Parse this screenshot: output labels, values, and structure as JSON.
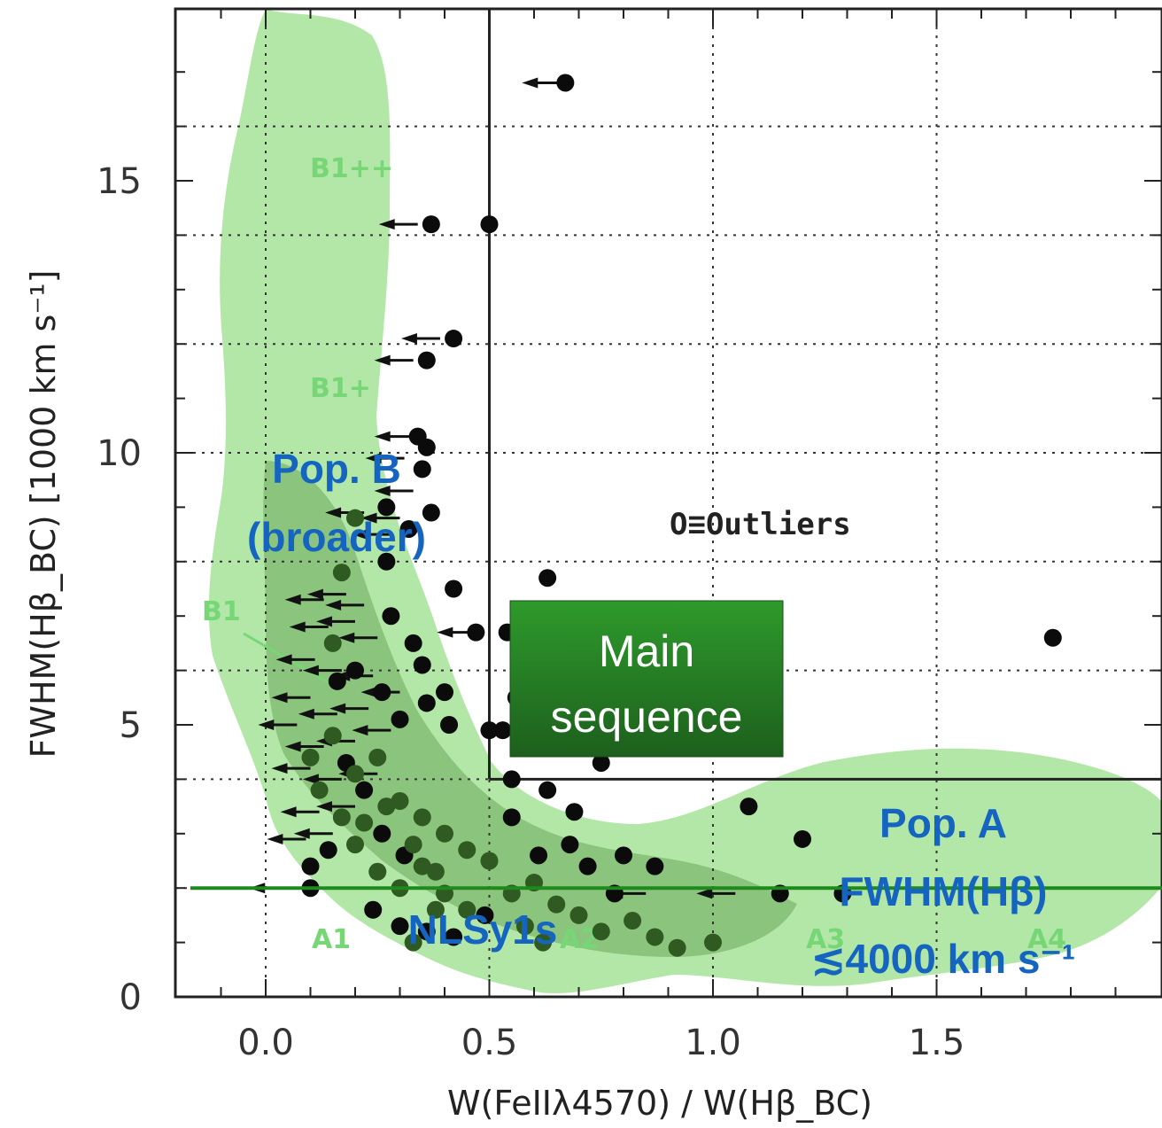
{
  "chart_data": {
    "type": "scatter",
    "xlabel": "W(FeIIλ4570) / W(Hβ_BC)",
    "ylabel": "FWHM(Hβ_BC) [1000 km s⁻¹]",
    "xlim": [
      -0.2,
      2.0
    ],
    "ylim": [
      0,
      18
    ],
    "x_ticks": [
      "0.0",
      "0.5",
      "1.0",
      "1.5"
    ],
    "y_ticks": [
      "0",
      "5",
      "10",
      "15"
    ],
    "grid": "dotted, x every 0.5, y every 2",
    "main_sequence_boundaries": {
      "x": 0.5,
      "y": 4
    },
    "zone_labels": [
      "B1++",
      "B1+",
      "B1",
      "A1",
      "A2",
      "A3",
      "A4"
    ],
    "annotations": {
      "outliers": "O≡Outliers",
      "main_sequence": [
        "Main",
        "sequence"
      ],
      "pop_b": [
        "Pop. B",
        "(broader)"
      ],
      "pop_a": [
        "Pop. A",
        "FWHM(Hβ)",
        "≲4000 km s⁻¹"
      ],
      "nlsy1": "NLSy1s"
    },
    "nlsy1_line_y": 2,
    "series": [
      {
        "marker": "filled circle (black)",
        "points": [
          [
            0.67,
            16.8
          ],
          [
            0.37,
            14.2
          ],
          [
            0.5,
            14.2
          ],
          [
            0.42,
            12.1
          ],
          [
            0.36,
            11.7
          ],
          [
            0.36,
            10.1
          ],
          [
            0.34,
            10.3
          ],
          [
            0.35,
            9.7
          ],
          [
            0.37,
            8.9
          ],
          [
            0.42,
            7.5
          ],
          [
            0.63,
            7.7
          ],
          [
            0.47,
            6.7
          ],
          [
            0.54,
            6.7
          ],
          [
            0.35,
            6.1
          ],
          [
            0.33,
            6.5
          ],
          [
            0.4,
            5.6
          ],
          [
            0.41,
            5.0
          ],
          [
            0.36,
            5.4
          ],
          [
            0.5,
            4.9
          ],
          [
            0.53,
            4.9
          ],
          [
            0.56,
            5.5
          ],
          [
            0.65,
            5.2
          ],
          [
            0.71,
            4.6
          ],
          [
            0.75,
            4.3
          ],
          [
            0.55,
            4.0
          ],
          [
            0.63,
            3.8
          ],
          [
            0.69,
            3.4
          ],
          [
            0.55,
            3.3
          ],
          [
            0.61,
            2.6
          ],
          [
            0.68,
            2.8
          ],
          [
            0.72,
            2.4
          ],
          [
            0.8,
            2.6
          ],
          [
            0.87,
            2.4
          ],
          [
            0.78,
            1.9
          ],
          [
            1.08,
            3.5
          ],
          [
            1.2,
            2.9
          ],
          [
            1.15,
            1.9
          ],
          [
            1.29,
            1.9
          ],
          [
            1.76,
            6.6
          ],
          [
            0.16,
            5.8
          ],
          [
            0.2,
            6.0
          ],
          [
            0.26,
            5.6
          ],
          [
            0.3,
            5.1
          ],
          [
            0.28,
            7.0
          ],
          [
            0.27,
            8.0
          ],
          [
            0.32,
            8.6
          ],
          [
            0.27,
            9.0
          ],
          [
            0.18,
            4.3
          ],
          [
            0.22,
            3.8
          ],
          [
            0.26,
            3.0
          ],
          [
            0.31,
            2.6
          ],
          [
            0.14,
            2.7
          ],
          [
            0.1,
            2.4
          ],
          [
            0.1,
            2.0
          ],
          [
            0.24,
            1.6
          ],
          [
            0.3,
            1.3
          ],
          [
            0.36,
            1.2
          ],
          [
            0.42,
            1.1
          ],
          [
            0.49,
            1.5
          ]
        ]
      },
      {
        "marker": "filled circle (dark green, within contours)",
        "points": [
          [
            0.15,
            4.8
          ],
          [
            0.2,
            4.1
          ],
          [
            0.25,
            4.4
          ],
          [
            0.3,
            3.6
          ],
          [
            0.35,
            3.3
          ],
          [
            0.4,
            3.0
          ],
          [
            0.45,
            2.7
          ],
          [
            0.5,
            2.5
          ],
          [
            0.2,
            2.8
          ],
          [
            0.25,
            2.3
          ],
          [
            0.3,
            2.0
          ],
          [
            0.35,
            2.4
          ],
          [
            0.4,
            1.9
          ],
          [
            0.45,
            1.6
          ],
          [
            0.55,
            1.9
          ],
          [
            0.6,
            2.1
          ],
          [
            0.65,
            1.7
          ],
          [
            0.7,
            1.5
          ],
          [
            0.75,
            1.2
          ],
          [
            0.82,
            1.4
          ],
          [
            0.87,
            1.1
          ],
          [
            0.92,
            0.9
          ],
          [
            1.0,
            1.0
          ],
          [
            0.58,
            1.3
          ],
          [
            0.62,
            1.0
          ],
          [
            0.33,
            1.0
          ],
          [
            0.38,
            1.6
          ],
          [
            0.17,
            3.3
          ],
          [
            0.22,
            3.2
          ],
          [
            0.27,
            3.5
          ],
          [
            0.33,
            2.8
          ],
          [
            0.38,
            2.3
          ],
          [
            0.12,
            3.8
          ],
          [
            0.1,
            4.4
          ],
          [
            0.15,
            6.5
          ],
          [
            0.17,
            7.8
          ],
          [
            0.2,
            8.8
          ]
        ]
      }
    ],
    "upper_limits": [
      [
        0.66,
        16.8
      ],
      [
        0.34,
        14.2
      ],
      [
        0.39,
        12.1
      ],
      [
        0.33,
        11.7
      ],
      [
        0.33,
        10.3
      ],
      [
        0.31,
        9.9
      ],
      [
        0.33,
        9.3
      ],
      [
        0.3,
        8.8
      ],
      [
        0.28,
        8.5
      ],
      [
        0.47,
        6.7
      ],
      [
        0.22,
        8.9
      ],
      [
        0.13,
        7.3
      ],
      [
        0.18,
        7.4
      ],
      [
        0.22,
        7.2
      ],
      [
        0.14,
        6.8
      ],
      [
        0.2,
        6.9
      ],
      [
        0.25,
        6.6
      ],
      [
        0.11,
        6.2
      ],
      [
        0.17,
        6.0
      ],
      [
        0.24,
        5.9
      ],
      [
        0.1,
        5.5
      ],
      [
        0.16,
        5.2
      ],
      [
        0.23,
        5.3
      ],
      [
        0.3,
        5.6
      ],
      [
        0.07,
        5.0
      ],
      [
        0.13,
        4.6
      ],
      [
        0.2,
        4.7
      ],
      [
        0.28,
        4.9
      ],
      [
        0.1,
        4.2
      ],
      [
        0.17,
        4.0
      ],
      [
        0.25,
        4.1
      ],
      [
        0.12,
        3.4
      ],
      [
        0.2,
        3.5
      ],
      [
        0.09,
        2.9
      ],
      [
        0.15,
        3.0
      ],
      [
        0.05,
        2.0
      ],
      [
        1.05,
        1.9
      ],
      [
        0.85,
        1.9
      ]
    ]
  }
}
